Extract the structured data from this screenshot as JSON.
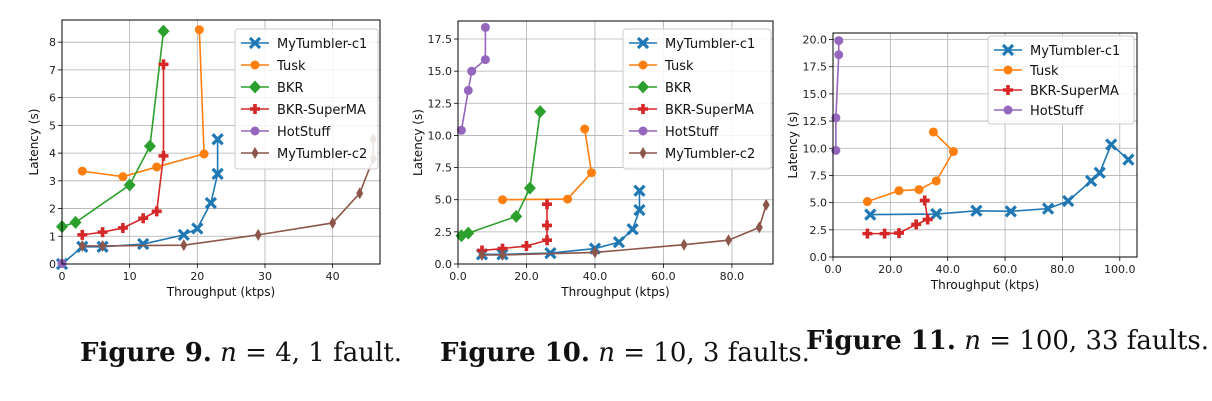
{
  "captions": [
    {
      "fig": "Figure 9.",
      "var": "n",
      "rest": " = 4, 1 fault."
    },
    {
      "fig": "Figure 10.",
      "var": "n",
      "rest": " = 10, 3 faults."
    },
    {
      "fig": "Figure 11.",
      "var": "n",
      "rest": " = 100, 33 faults."
    }
  ],
  "colors": {
    "MyTumbler-c1": "#1f77b4",
    "Tusk": "#ff7f0e",
    "BKR": "#2ca02c",
    "BKR-SuperMA": "#d62728",
    "HotStuff": "#9467bd",
    "MyTumbler-c2": "#8c564b"
  },
  "chart_data": [
    {
      "type": "line",
      "xlabel": "Throughput (ktps)",
      "ylabel": "Latency (s)",
      "xlim": [
        0,
        47
      ],
      "ylim": [
        0,
        8.8
      ],
      "xticks": [
        0,
        10,
        20,
        30,
        40
      ],
      "yticks": [
        0,
        1,
        2,
        3,
        4,
        5,
        6,
        7,
        8
      ],
      "grid": true,
      "legend": "top-right",
      "series": [
        {
          "name": "MyTumbler-c1",
          "marker": "X",
          "points": [
            [
              0,
              0
            ],
            [
              3,
              0.62
            ],
            [
              6,
              0.62
            ],
            [
              12,
              0.72
            ],
            [
              18,
              1.05
            ],
            [
              20,
              1.28
            ],
            [
              22,
              2.2
            ],
            [
              23,
              3.25
            ],
            [
              23,
              4.5
            ]
          ]
        },
        {
          "name": "Tusk",
          "marker": "o",
          "points": [
            [
              3,
              3.35
            ],
            [
              9,
              3.15
            ],
            [
              14,
              3.5
            ],
            [
              21,
              3.97
            ],
            [
              20.3,
              8.45
            ]
          ]
        },
        {
          "name": "BKR",
          "marker": "D",
          "points": [
            [
              0,
              1.35
            ],
            [
              2,
              1.5
            ],
            [
              10,
              2.85
            ],
            [
              13,
              4.25
            ],
            [
              15,
              8.4
            ]
          ]
        },
        {
          "name": "BKR-SuperMA",
          "marker": "P",
          "points": [
            [
              3,
              1.05
            ],
            [
              6,
              1.15
            ],
            [
              9,
              1.3
            ],
            [
              12,
              1.65
            ],
            [
              14,
              1.9
            ],
            [
              15,
              3.9
            ],
            [
              15,
              7.2
            ]
          ]
        },
        {
          "name": "HotStuff",
          "marker": "o",
          "points": [
            [
              0,
              0.02
            ]
          ]
        },
        {
          "name": "MyTumbler-c2",
          "marker": "d",
          "points": [
            [
              3,
              0.65
            ],
            [
              6,
              0.65
            ],
            [
              18,
              0.68
            ],
            [
              29,
              1.05
            ],
            [
              40,
              1.48
            ],
            [
              44,
              2.55
            ],
            [
              46,
              3.8
            ],
            [
              46,
              4.5
            ]
          ]
        }
      ]
    },
    {
      "type": "line",
      "xlabel": "Throughput (ktps)",
      "ylabel": "Latency (s)",
      "xlim": [
        0,
        92
      ],
      "ylim": [
        0,
        18.9
      ],
      "xticks": [
        0,
        20,
        40,
        60,
        80
      ],
      "yticks": [
        0.0,
        2.5,
        5.0,
        7.5,
        10.0,
        12.5,
        15.0,
        17.5
      ],
      "tick_format": "fixed1",
      "grid": true,
      "legend": "top-right",
      "series": [
        {
          "name": "MyTumbler-c1",
          "marker": "X",
          "points": [
            [
              7,
              0.75
            ],
            [
              13,
              0.75
            ],
            [
              27,
              0.85
            ],
            [
              40,
              1.2
            ],
            [
              47,
              1.7
            ],
            [
              51,
              2.7
            ],
            [
              53,
              4.2
            ],
            [
              53,
              5.7
            ]
          ]
        },
        {
          "name": "Tusk",
          "marker": "o",
          "points": [
            [
              13,
              5.0
            ],
            [
              32,
              5.05
            ],
            [
              39,
              7.1
            ],
            [
              37,
              10.5
            ]
          ]
        },
        {
          "name": "BKR",
          "marker": "D",
          "points": [
            [
              1,
              2.2
            ],
            [
              3,
              2.4
            ],
            [
              17,
              3.7
            ],
            [
              21,
              5.9
            ],
            [
              24,
              11.85
            ]
          ]
        },
        {
          "name": "BKR-SuperMA",
          "marker": "P",
          "points": [
            [
              7,
              1.05
            ],
            [
              13,
              1.2
            ],
            [
              20,
              1.4
            ],
            [
              26,
              1.85
            ],
            [
              26,
              3.0
            ],
            [
              26,
              4.65
            ]
          ]
        },
        {
          "name": "HotStuff",
          "marker": "o",
          "points": [
            [
              1,
              10.4
            ],
            [
              3,
              13.5
            ],
            [
              4,
              15.0
            ],
            [
              8,
              15.9
            ],
            [
              8,
              18.4
            ]
          ]
        },
        {
          "name": "MyTumbler-c2",
          "marker": "d",
          "points": [
            [
              7,
              0.7
            ],
            [
              13,
              0.7
            ],
            [
              40,
              0.9
            ],
            [
              66,
              1.5
            ],
            [
              79,
              1.85
            ],
            [
              88,
              2.85
            ],
            [
              90,
              4.6
            ]
          ]
        }
      ]
    },
    {
      "type": "line",
      "xlabel": "Throughput (ktps)",
      "ylabel": "Latency (s)",
      "xlim": [
        0,
        106
      ],
      "ylim": [
        0,
        20.6
      ],
      "xticks": [
        0,
        20,
        40,
        60,
        80,
        100
      ],
      "yticks": [
        0.0,
        2.5,
        5.0,
        7.5,
        10.0,
        12.5,
        15.0,
        17.5,
        20.0
      ],
      "tick_format": "fixed1",
      "grid": true,
      "legend": "top-right",
      "series": [
        {
          "name": "MyTumbler-c1",
          "marker": "X",
          "points": [
            [
              13,
              3.9
            ],
            [
              36,
              3.95
            ],
            [
              50,
              4.25
            ],
            [
              62,
              4.2
            ],
            [
              75,
              4.45
            ],
            [
              82,
              5.15
            ],
            [
              90,
              7.0
            ],
            [
              93,
              7.75
            ],
            [
              97,
              10.35
            ],
            [
              103,
              8.95
            ]
          ]
        },
        {
          "name": "Tusk",
          "marker": "o",
          "points": [
            [
              12,
              5.1
            ],
            [
              23,
              6.1
            ],
            [
              30,
              6.2
            ],
            [
              36,
              7.0
            ],
            [
              42,
              9.7
            ],
            [
              35,
              11.5
            ]
          ]
        },
        {
          "name": "BKR-SuperMA",
          "marker": "P",
          "points": [
            [
              12,
              2.15
            ],
            [
              18,
              2.15
            ],
            [
              23,
              2.2
            ],
            [
              29,
              3.0
            ],
            [
              33,
              3.45
            ],
            [
              32,
              5.2
            ]
          ]
        },
        {
          "name": "HotStuff",
          "marker": "o",
          "points": [
            [
              1,
              9.8
            ],
            [
              1,
              12.8
            ],
            [
              2,
              18.6
            ],
            [
              2,
              19.9
            ]
          ]
        }
      ]
    }
  ]
}
